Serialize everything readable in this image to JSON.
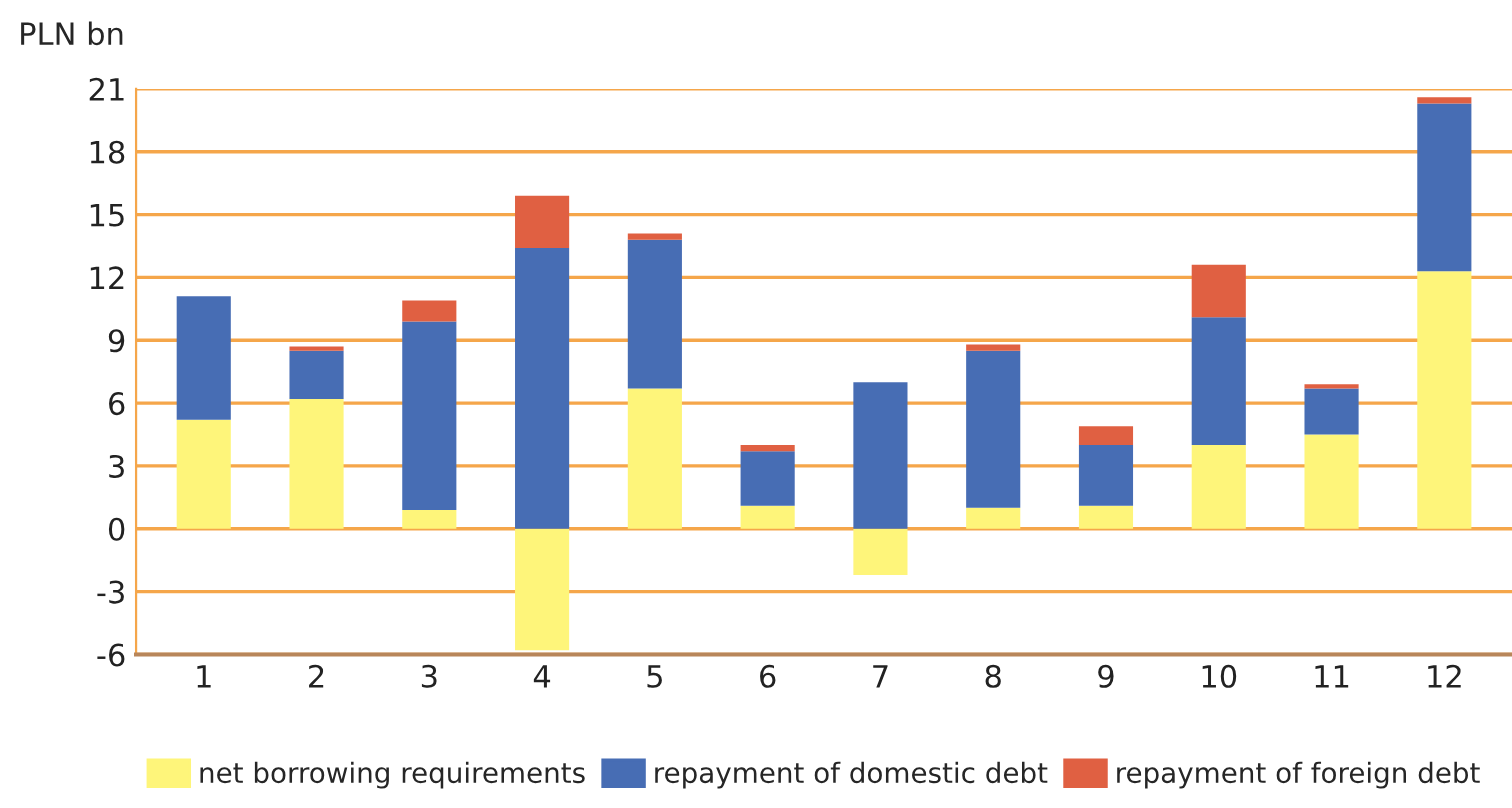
{
  "chart_data": {
    "type": "bar",
    "stacked": true,
    "ylabel": "PLN bn",
    "categories": [
      "1",
      "2",
      "3",
      "4",
      "5",
      "6",
      "7",
      "8",
      "9",
      "10",
      "11",
      "12"
    ],
    "series": [
      {
        "name": "net borrowing requirements",
        "color": "#fef57a",
        "values": [
          5.2,
          6.2,
          0.9,
          -5.8,
          6.7,
          1.1,
          -2.2,
          1.0,
          1.1,
          4.0,
          4.5,
          12.3
        ]
      },
      {
        "name": "repayment of domestic debt",
        "color": "#476db4",
        "values": [
          5.9,
          2.3,
          9.0,
          13.4,
          7.1,
          2.6,
          7.0,
          7.5,
          2.9,
          6.1,
          2.2,
          8.0
        ]
      },
      {
        "name": "repayment of foreign debt",
        "color": "#e06042",
        "values": [
          0,
          0.2,
          1.0,
          2.5,
          0.3,
          0.3,
          0,
          0.3,
          0.9,
          2.5,
          0.2,
          0.3
        ]
      }
    ],
    "ylim": [
      -6,
      21
    ],
    "yticks": [
      -6,
      -3,
      0,
      3,
      6,
      9,
      12,
      15,
      18,
      21
    ],
    "grid": "y",
    "legend": "bottom"
  }
}
